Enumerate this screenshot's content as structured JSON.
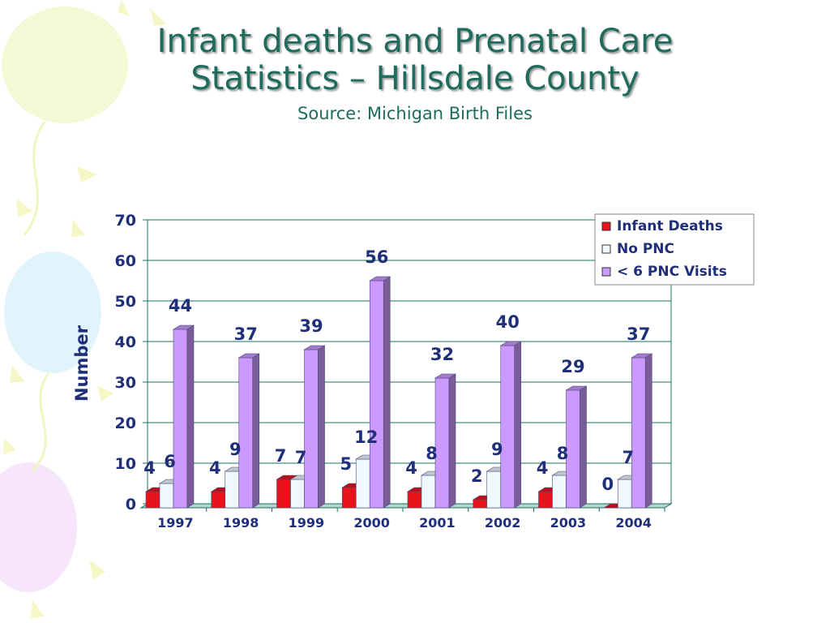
{
  "slide": {
    "title_line1": "Infant deaths and Prenatal Care",
    "title_line2": "Statistics – Hillsdale County",
    "subtitle": "Source: Michigan Birth Files"
  },
  "chart_data": {
    "type": "bar",
    "title": "",
    "xlabel": "",
    "ylabel": "Number",
    "ylim": [
      0,
      70
    ],
    "yticks": [
      0,
      10,
      20,
      30,
      40,
      50,
      60,
      70
    ],
    "grid": true,
    "legend_position": "top-right",
    "categories": [
      "1997",
      "1998",
      "1999",
      "2000",
      "2001",
      "2002",
      "2003",
      "2004"
    ],
    "series": [
      {
        "name": "Infant Deaths",
        "values": [
          4,
          4,
          7,
          5,
          4,
          2,
          4,
          0
        ],
        "color": "#e8131b"
      },
      {
        "name": "No PNC",
        "values": [
          6,
          9,
          7,
          12,
          8,
          9,
          8,
          7
        ],
        "color": "#f0f8ff"
      },
      {
        "name": "< 6 PNC Visits",
        "values": [
          44,
          37,
          39,
          56,
          32,
          40,
          29,
          37
        ],
        "color": "#cc99ff"
      }
    ]
  }
}
